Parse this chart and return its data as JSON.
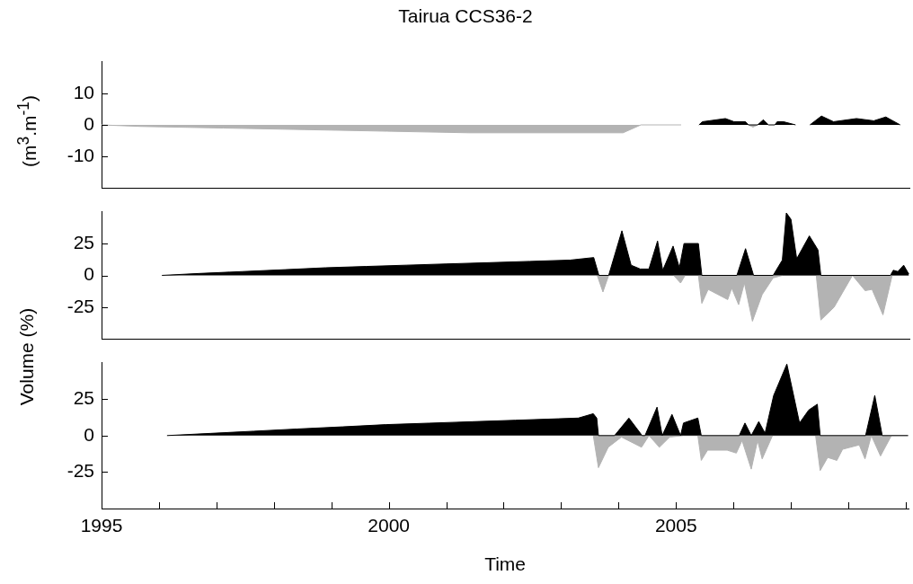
{
  "chart_data": [
    {
      "type": "area",
      "title": "Tairua CCS36-2",
      "ylabel": "(m$^{3}$.m$^{-1}$)",
      "xlim": [
        1995,
        2009.05
      ],
      "ylim": [
        -20,
        20
      ],
      "yticks": [
        -10,
        0,
        10
      ],
      "tick_labels": "y",
      "series": [
        {
          "color": "#000000",
          "x": [
            2005.39,
            2005.45,
            2005.85,
            2006.0,
            2006.2,
            2006.25,
            2006.41,
            2006.51,
            2006.6,
            2006.71,
            2006.75,
            2006.86,
            2007.07,
            2007.2,
            2007.32,
            2007.52,
            2007.73,
            2008.13,
            2008.43,
            2008.64,
            2008.89
          ],
          "values": [
            0,
            1,
            2,
            1,
            1,
            0,
            0,
            1.6,
            0,
            0,
            1,
            1,
            0,
            null,
            0,
            2.8,
            1,
            2,
            1.3,
            2.5,
            0
          ]
        },
        {
          "color": "#b3b3b3",
          "x": [
            1995,
            1995.69,
            1997.12,
            1998.53,
            1999.96,
            2001.38,
            2004.07,
            2004.38,
            2005.08,
            2005.2,
            2006.25,
            2006.33,
            2006.41
          ],
          "values": [
            0,
            -0.5,
            -1,
            -1.5,
            -2,
            -2.5,
            -2.5,
            0,
            0,
            null,
            0,
            -0.7,
            0
          ]
        }
      ]
    },
    {
      "type": "area",
      "ylabel": "Volume (%)",
      "xlim": [
        1995,
        2009.05
      ],
      "ylim": [
        -50,
        50
      ],
      "yticks": [
        -25,
        0,
        25
      ],
      "tick_labels": "y",
      "series": [
        {
          "color": "#000000",
          "x": [
            1996.05,
            1996.7,
            1997.45,
            1998.2,
            1998.9,
            1999.6,
            2000.3,
            2001.0,
            2001.75,
            2002.45,
            2003.15,
            2003.56,
            2003.65,
            2003.82,
            2004.05,
            2004.21,
            2004.37,
            2004.52,
            2004.67,
            2004.76,
            2004.94,
            2005.05,
            2005.13,
            2005.38,
            2005.44,
            2006.05,
            2006.2,
            2006.34,
            2006.68,
            2006.84,
            2006.91,
            2006.99,
            2007.09,
            2007.31,
            2007.46,
            2007.51,
            2008.72,
            2008.77,
            2008.85,
            2008.95,
            2009.04
          ],
          "values": [
            0,
            1.5,
            3,
            4.5,
            6,
            7,
            8,
            9,
            10,
            11,
            12,
            14,
            0,
            0,
            35,
            8,
            5,
            5,
            27,
            4,
            23,
            6,
            25,
            25,
            0,
            0,
            21,
            0,
            0,
            12,
            49,
            44,
            13,
            31,
            20,
            0,
            0,
            4,
            3,
            8,
            1
          ]
        },
        {
          "color": "#b3b3b3",
          "x": [
            2003.62,
            2003.72,
            2003.82,
            2004.95,
            2005.07,
            2005.15,
            2005.38,
            2005.44,
            2005.55,
            2005.89,
            2005.96,
            2006.08,
            2006.18,
            2006.32,
            2006.49,
            2006.68,
            2006.84,
            2007.43,
            2007.51,
            2007.74,
            2008.06,
            2008.28,
            2008.4,
            2008.59,
            2008.75,
            2009.04
          ],
          "values": [
            0,
            -13,
            0,
            0,
            -6,
            0,
            0,
            -22,
            -11,
            -19,
            -10,
            -23,
            -6,
            -36,
            -15,
            -2,
            0,
            0,
            -35,
            -25,
            0,
            -12,
            -11,
            -31,
            0,
            0
          ]
        }
      ]
    },
    {
      "type": "area",
      "xlabel": "Time",
      "xlim": [
        1995,
        2009.05
      ],
      "ylim": [
        -50,
        50
      ],
      "yticks": [
        -25,
        0,
        25
      ],
      "xticks": [
        1995,
        {
          "value": 1996,
          "label": null
        },
        {
          "value": 1997,
          "label": null
        },
        {
          "value": 1998,
          "label": null
        },
        {
          "value": 1999,
          "label": null
        },
        2000,
        {
          "value": 2001,
          "label": null
        },
        {
          "value": 2002,
          "label": null
        },
        {
          "value": 2003,
          "label": null
        },
        {
          "value": 2004,
          "label": null
        },
        2005,
        {
          "value": 2006,
          "label": null
        },
        {
          "value": 2007,
          "label": null
        },
        {
          "value": 2008,
          "label": null
        },
        {
          "value": 2009,
          "label": null
        }
      ],
      "series": [
        {
          "color": "#000000",
          "x": [
            1996.14,
            1996.9,
            1997.65,
            1998.4,
            1999.2,
            1999.95,
            2000.7,
            2001.45,
            2002.2,
            2002.95,
            2003.3,
            2003.56,
            2003.62,
            2003.65,
            2003.93,
            2004.18,
            2004.41,
            2004.46,
            2004.67,
            2004.76,
            2004.93,
            2005.08,
            2005.13,
            2005.38,
            2005.44,
            2006.1,
            2006.2,
            2006.31,
            2006.44,
            2006.55,
            2006.7,
            2006.93,
            2007.15,
            2007.31,
            2007.46,
            2007.51,
            2008.3,
            2008.46,
            2008.59,
            2009.04
          ],
          "values": [
            0,
            1.5,
            3,
            4.5,
            6,
            7.5,
            8.5,
            9.5,
            10.5,
            11.5,
            12,
            15,
            12,
            0,
            0,
            12,
            0,
            0,
            19.5,
            0,
            14.5,
            0,
            8.6,
            12,
            0,
            0,
            8.6,
            0,
            9.6,
            1.6,
            27.5,
            49,
            8.6,
            17.5,
            21.5,
            0,
            0,
            27.5,
            0,
            0
          ]
        },
        {
          "color": "#b3b3b3",
          "x": [
            2003.56,
            2003.65,
            2003.82,
            2004.05,
            2004.4,
            2004.53,
            2004.71,
            2004.89,
            2005.13,
            2005.38,
            2005.44,
            2005.55,
            2005.89,
            2006.05,
            2006.15,
            2006.31,
            2006.42,
            2006.5,
            2006.68,
            2007.43,
            2007.51,
            2007.64,
            2007.8,
            2007.9,
            2008.19,
            2008.29,
            2008.4,
            2008.56,
            2008.75,
            2009.04
          ],
          "values": [
            0,
            -22,
            -8,
            -1,
            -8,
            0,
            -8,
            -1,
            0,
            0,
            -17,
            -10,
            -10,
            -12,
            -3.4,
            -23,
            -3.4,
            -16,
            0,
            0,
            -24,
            -15,
            -17,
            -9.4,
            -6.4,
            -16,
            0,
            -14,
            0,
            0
          ]
        }
      ]
    }
  ]
}
